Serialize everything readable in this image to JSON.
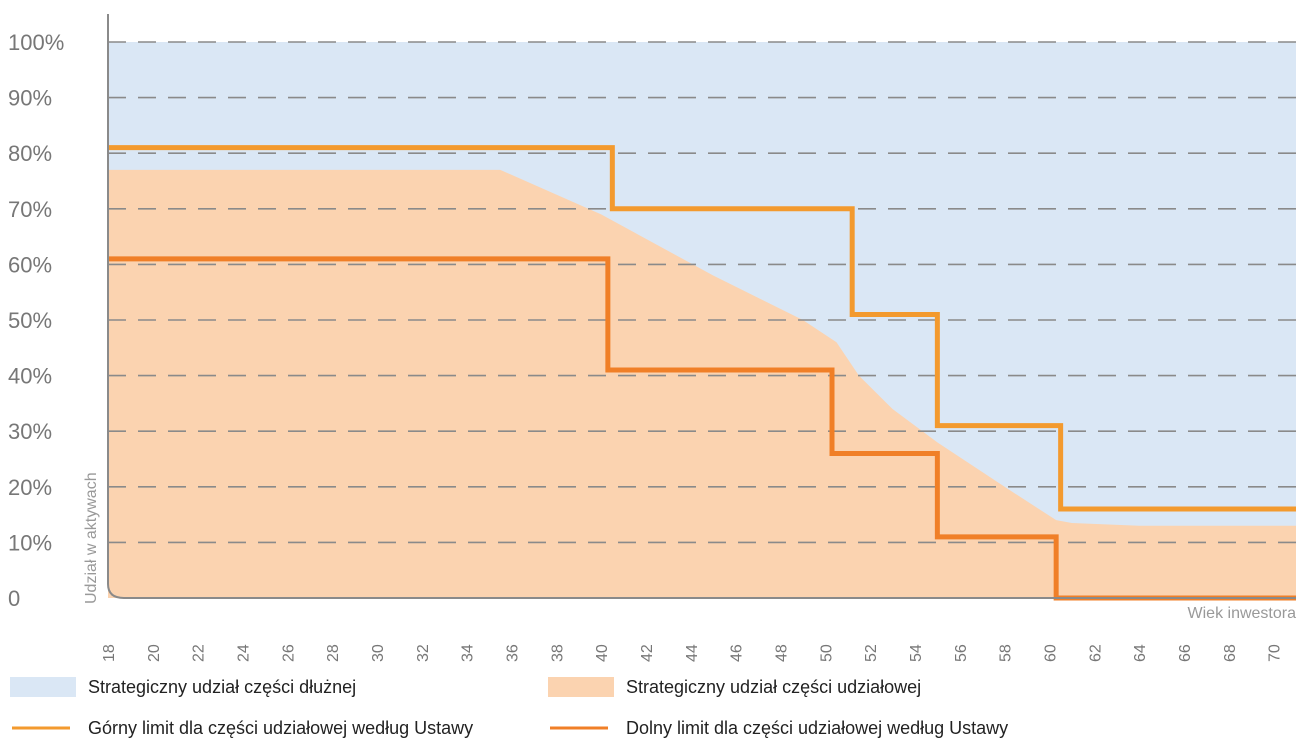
{
  "chart_data": {
    "type": "area",
    "xlabel": "Wiek inwestora",
    "ylabel": "Udział w aktywach",
    "xlim": [
      18,
      71
    ],
    "ylim": [
      0,
      100
    ],
    "x_ticks": [
      "18",
      "20",
      "22",
      "24",
      "26",
      "28",
      "30",
      "32",
      "34",
      "36",
      "38",
      "40",
      "42",
      "44",
      "46",
      "48",
      "50",
      "52",
      "54",
      "56",
      "58",
      "60",
      "62",
      "64",
      "66",
      "68",
      "70"
    ],
    "y_ticks": [
      "0",
      "10%",
      "20%",
      "30%",
      "40%",
      "50%",
      "60%",
      "70%",
      "80%",
      "90%",
      "100%"
    ],
    "grid": "dashed horizontal",
    "legend_position": "bottom",
    "series": [
      {
        "name": "Strategiczny udział części dłużnej",
        "kind": "area",
        "color": "#dae7f5",
        "x": [
          18,
          71
        ],
        "y": [
          100,
          100
        ]
      },
      {
        "name": "Strategiczny udział części udziałowej",
        "kind": "area",
        "color": "#fbd3b0",
        "x": [
          18,
          35.5,
          40,
          45,
          49,
          50.5,
          51.5,
          53,
          55,
          58,
          60.3,
          61,
          64,
          66,
          71
        ],
        "y": [
          77,
          77,
          69,
          58,
          50,
          46,
          40,
          34,
          28,
          20,
          14,
          13.5,
          13,
          13,
          13
        ]
      },
      {
        "name": "Górny limit dla części udziałowej według Ustawy",
        "kind": "step",
        "color": "#f39a2e",
        "x": [
          18,
          40.5,
          40.5,
          51.2,
          51.2,
          55,
          55,
          60.5,
          60.5,
          71
        ],
        "y": [
          81,
          81,
          70,
          70,
          51,
          51,
          31,
          31,
          16,
          16
        ]
      },
      {
        "name": "Dolny limit dla części udziałowej według Ustawy",
        "kind": "step",
        "color": "#f07f27",
        "x": [
          18,
          40.3,
          40.3,
          50.3,
          50.3,
          55,
          55,
          60.3,
          60.3,
          71
        ],
        "y": [
          61,
          61,
          41,
          41,
          26,
          26,
          11,
          11,
          0,
          0
        ]
      }
    ]
  }
}
